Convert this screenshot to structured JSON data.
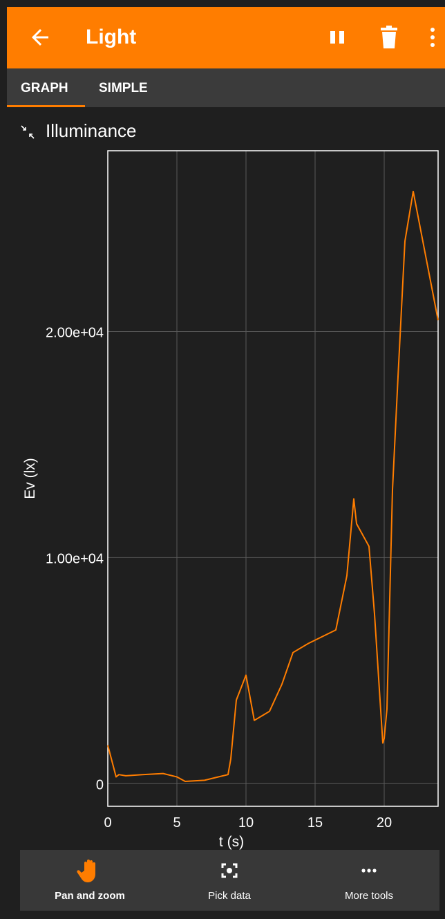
{
  "app_bar": {
    "title": "Light",
    "accent": "#ff7d00",
    "icons": [
      "back-arrow-icon",
      "pause-icon",
      "trash-icon",
      "more-vert-icon"
    ]
  },
  "tabs": [
    {
      "label": "GRAPH",
      "selected": true
    },
    {
      "label": "SIMPLE",
      "selected": false
    }
  ],
  "plot": {
    "title": "Illuminance",
    "collapse_icon": "collapse-icon"
  },
  "chart_data": {
    "type": "line",
    "title": "Illuminance",
    "xlabel": "t (s)",
    "ylabel": "Ev (lx)",
    "xlim": [
      0,
      23.9
    ],
    "ylim": [
      -1000,
      28000
    ],
    "x_ticks": [
      0,
      5,
      10,
      15,
      20
    ],
    "x_tick_labels": [
      "0",
      "5",
      "10",
      "15",
      "20"
    ],
    "y_ticks": [
      0,
      10000,
      20000
    ],
    "y_tick_labels": [
      "0",
      "1.00e+04",
      "2.00e+04"
    ],
    "grid": true,
    "line_color": "#ff7d00",
    "series": [
      {
        "x": [
          0,
          0.6,
          0.8,
          1.3,
          2.5,
          4.0,
          5.0,
          5.6,
          7.0,
          8.0,
          8.7,
          8.9,
          9.3,
          10.0,
          10.6,
          11.7,
          12.6,
          13.4,
          14.5,
          16.5,
          17.3,
          17.8,
          18.0,
          18.9,
          19.3,
          19.9,
          20.0,
          20.2,
          20.6,
          21.0,
          21.5,
          22.1,
          23.9
        ],
        "y": [
          1700,
          300,
          400,
          350,
          400,
          450,
          300,
          100,
          150,
          300,
          400,
          1100,
          3700,
          4800,
          2800,
          3200,
          4400,
          5800,
          6200,
          6800,
          9200,
          12600,
          11500,
          10500,
          7500,
          1800,
          2000,
          3300,
          13000,
          18000,
          24000,
          26200,
          20500
        ]
      }
    ]
  },
  "tools": [
    {
      "label": "Pan and zoom",
      "icon": "hand-icon",
      "active": true
    },
    {
      "label": "Pick data",
      "icon": "target-icon",
      "active": false
    },
    {
      "label": "More tools",
      "icon": "more-horiz-icon",
      "active": false
    }
  ]
}
